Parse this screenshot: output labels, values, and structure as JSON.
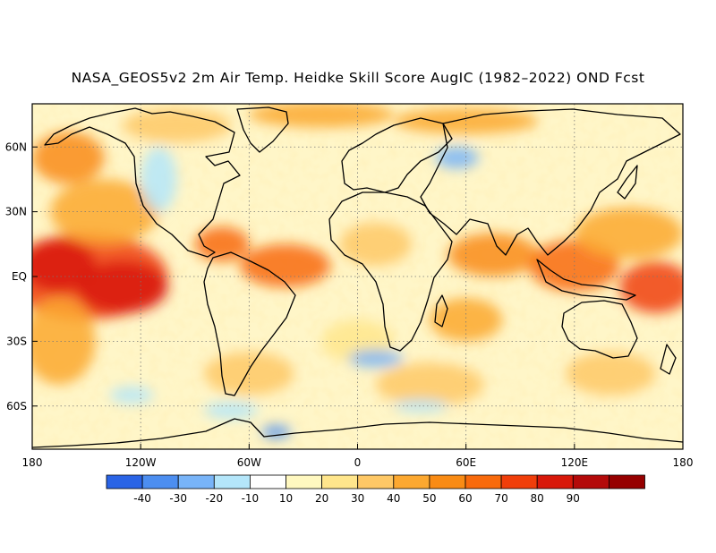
{
  "title": "NASA_GEOS5v2 2m Air Temp. Heidke Skill Score AugIC (1982–2022) OND Fcst",
  "map": {
    "projection": "equirectangular",
    "lon_range": [
      -180,
      180
    ],
    "lat_range": [
      -80,
      80
    ],
    "grid": "dotted",
    "coastlines": true,
    "y_ticks": [
      {
        "lat": 60,
        "label": "60N"
      },
      {
        "lat": 30,
        "label": "30N"
      },
      {
        "lat": 0,
        "label": "EQ"
      },
      {
        "lat": -30,
        "label": "30S"
      },
      {
        "lat": -60,
        "label": "60S"
      }
    ],
    "x_ticks": [
      {
        "lon": -180,
        "label": "180"
      },
      {
        "lon": -120,
        "label": "120W"
      },
      {
        "lon": -60,
        "label": "60W"
      },
      {
        "lon": 0,
        "label": "0"
      },
      {
        "lon": 60,
        "label": "60E"
      },
      {
        "lon": 120,
        "label": "120E"
      },
      {
        "lon": 180,
        "label": "180"
      }
    ]
  },
  "colorbar": {
    "colors": [
      "#2a64e6",
      "#4c8ef0",
      "#78b4f8",
      "#b4e6fa",
      "#ffffff",
      "#fff8c0",
      "#ffe68c",
      "#fec866",
      "#fca830",
      "#f98b14",
      "#f86a0c",
      "#f03e0a",
      "#d8180a",
      "#b40a0a",
      "#960000"
    ],
    "labels": [
      "-40",
      "-30",
      "-20",
      "-10",
      "10",
      "20",
      "30",
      "40",
      "50",
      "60",
      "70",
      "80",
      "90"
    ]
  },
  "skill_regions": [
    {
      "lon": -150,
      "lat": 0,
      "rx": 45,
      "ry": 20,
      "level": 11
    },
    {
      "lon": -130,
      "lat": -5,
      "rx": 25,
      "ry": 12,
      "level": 12
    },
    {
      "lon": -165,
      "lat": 5,
      "rx": 20,
      "ry": 12,
      "level": 12
    },
    {
      "lon": -140,
      "lat": 30,
      "rx": 30,
      "ry": 15,
      "level": 8
    },
    {
      "lon": -160,
      "lat": 55,
      "rx": 20,
      "ry": 12,
      "level": 9
    },
    {
      "lon": -165,
      "lat": -30,
      "rx": 20,
      "ry": 20,
      "level": 8
    },
    {
      "lon": -40,
      "lat": 5,
      "rx": 25,
      "ry": 10,
      "level": 10
    },
    {
      "lon": -75,
      "lat": 15,
      "rx": 15,
      "ry": 8,
      "level": 10
    },
    {
      "lon": 75,
      "lat": 10,
      "rx": 25,
      "ry": 10,
      "level": 9
    },
    {
      "lon": 120,
      "lat": 5,
      "rx": 25,
      "ry": 12,
      "level": 10
    },
    {
      "lon": 165,
      "lat": -5,
      "rx": 20,
      "ry": 12,
      "level": 11
    },
    {
      "lon": 150,
      "lat": 20,
      "rx": 30,
      "ry": 12,
      "level": 8
    },
    {
      "lon": 60,
      "lat": -20,
      "rx": 20,
      "ry": 10,
      "level": 8
    },
    {
      "lon": -20,
      "lat": 75,
      "rx": 40,
      "ry": 6,
      "level": 8
    },
    {
      "lon": 60,
      "lat": 72,
      "rx": 40,
      "ry": 6,
      "level": 8
    },
    {
      "lon": -100,
      "lat": 70,
      "rx": 30,
      "ry": 8,
      "level": 7
    },
    {
      "lon": 10,
      "lat": 15,
      "rx": 20,
      "ry": 10,
      "level": 7
    },
    {
      "lon": -60,
      "lat": -45,
      "rx": 25,
      "ry": 10,
      "level": 7
    },
    {
      "lon": 40,
      "lat": -50,
      "rx": 30,
      "ry": 10,
      "level": 7
    },
    {
      "lon": 140,
      "lat": -45,
      "rx": 25,
      "ry": 10,
      "level": 7
    },
    {
      "lon": 0,
      "lat": -30,
      "rx": 20,
      "ry": 10,
      "level": 6
    },
    {
      "lon": -110,
      "lat": 45,
      "rx": 10,
      "ry": 15,
      "level": 3
    },
    {
      "lon": 55,
      "lat": 55,
      "rx": 12,
      "ry": 5,
      "level": 2
    },
    {
      "lon": 10,
      "lat": -38,
      "rx": 15,
      "ry": 4,
      "level": 2
    },
    {
      "lon": -70,
      "lat": -62,
      "rx": 15,
      "ry": 4,
      "level": 3
    },
    {
      "lon": -45,
      "lat": -72,
      "rx": 8,
      "ry": 3,
      "level": 1
    },
    {
      "lon": 35,
      "lat": -60,
      "rx": 15,
      "ry": 3,
      "level": 3
    },
    {
      "lon": -125,
      "lat": -55,
      "rx": 12,
      "ry": 4,
      "level": 3
    }
  ]
}
